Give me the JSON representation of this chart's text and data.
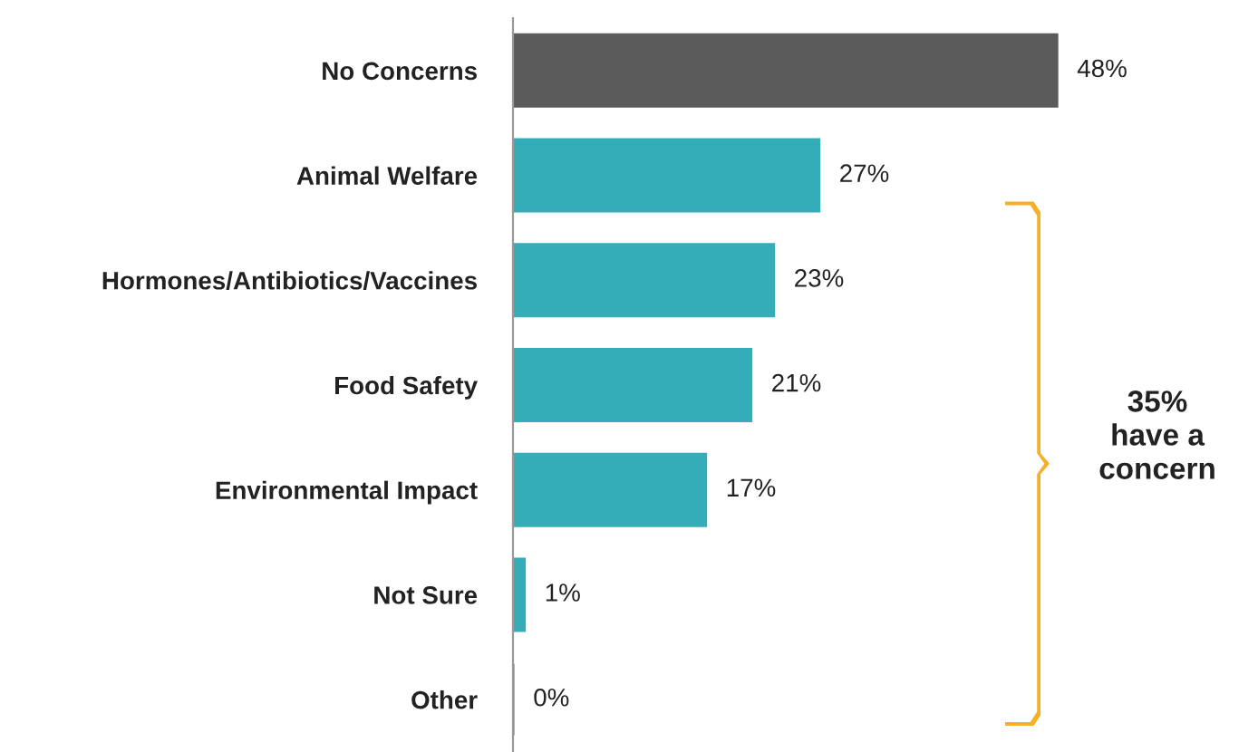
{
  "chart_data": {
    "type": "bar",
    "orientation": "horizontal",
    "categories": [
      "No Concerns",
      "Animal Welfare",
      "Hormones/Antibiotics/Vaccines",
      "Food Safety",
      "Environmental Impact",
      "Not Sure",
      "Other"
    ],
    "values": [
      48,
      27,
      23,
      21,
      17,
      1,
      0
    ],
    "colors": [
      "#5b5b5b",
      "#35adb8",
      "#35adb8",
      "#35adb8",
      "#35adb8",
      "#35adb8",
      "#35adb8"
    ],
    "value_labels": [
      "48%",
      "27%",
      "23%",
      "21%",
      "17%",
      "1%",
      "0%"
    ],
    "annotations": [
      "35%\nhave a\nconcern"
    ],
    "grid": false,
    "legend": false
  }
}
